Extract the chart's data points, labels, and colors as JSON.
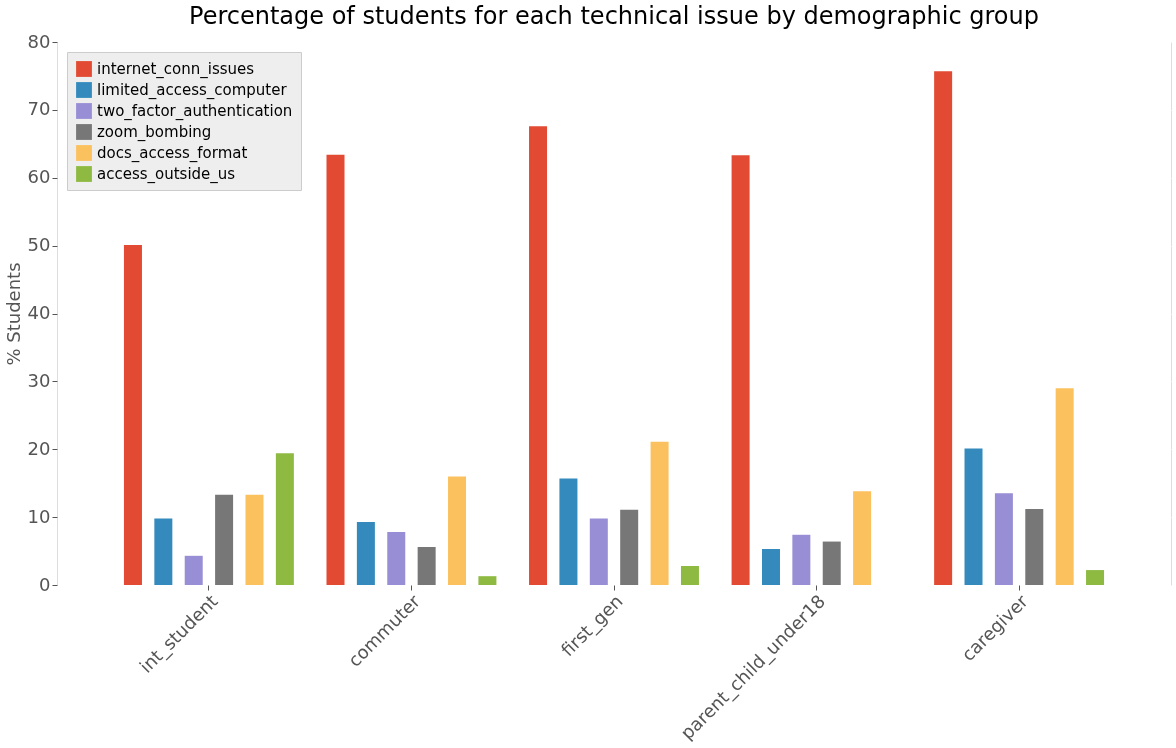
{
  "chart_data": {
    "type": "bar",
    "title": "Percentage of students for each technical issue by demographic group",
    "ylabel": "% Students",
    "categories": [
      "int_student",
      "commuter",
      "first_gen",
      "parent_child_under18",
      "caregiver"
    ],
    "series": [
      {
        "name": "internet_conn_issues",
        "color": "#e24a33",
        "values": [
          50.1,
          63.4,
          67.6,
          63.3,
          75.7
        ]
      },
      {
        "name": "limited_access_computer",
        "color": "#348abd",
        "values": [
          9.8,
          9.3,
          15.7,
          5.3,
          20.1
        ]
      },
      {
        "name": "two_factor_authentication",
        "color": "#988ed5",
        "values": [
          4.3,
          7.8,
          9.8,
          7.4,
          13.5
        ]
      },
      {
        "name": "zoom_bombing",
        "color": "#777777",
        "values": [
          13.3,
          5.6,
          11.1,
          6.4,
          11.2
        ]
      },
      {
        "name": "docs_access_format",
        "color": "#fbc15e",
        "values": [
          13.3,
          16.0,
          21.1,
          13.8,
          29.0
        ]
      },
      {
        "name": "access_outside_us",
        "color": "#8eba42",
        "values": [
          19.4,
          1.3,
          2.8,
          null,
          2.2
        ]
      }
    ],
    "ylim": [
      0,
      80
    ],
    "yticks": [
      0,
      10,
      20,
      30,
      40,
      50,
      60,
      70,
      80
    ],
    "grid": true,
    "legend": "top left"
  }
}
